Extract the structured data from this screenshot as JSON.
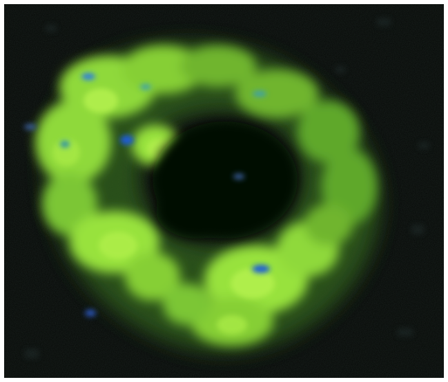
{
  "image": {
    "kind": "fluorescence-micrograph",
    "description_visible_text": "",
    "colors": {
      "background": "#050705",
      "signal_primary": "#9ae63c",
      "signal_secondary": "#5fb02a",
      "signal_dim": "#2f5a1c",
      "nucleus_spot": "#1f5bd6",
      "frame": "#ffffff"
    }
  }
}
